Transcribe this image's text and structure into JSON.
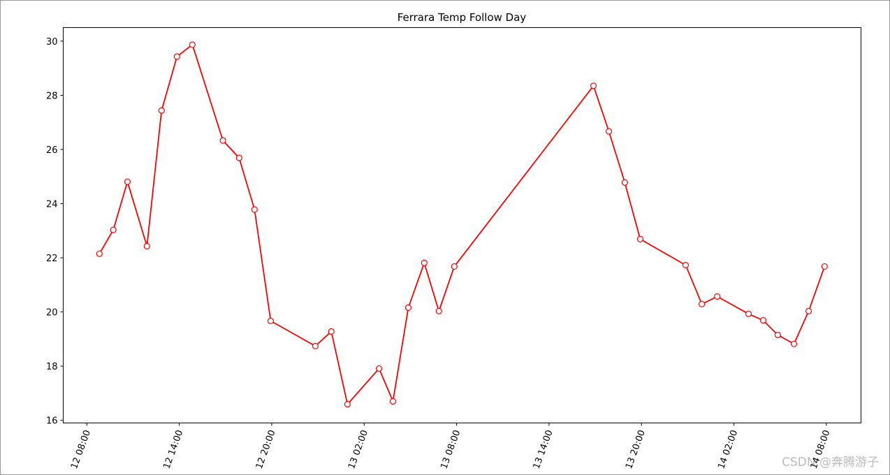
{
  "chart_data": {
    "type": "line",
    "title": "Ferrara Temp Follow Day",
    "x": [
      "12 08:49",
      "12 09:43",
      "12 10:38",
      "12 11:54",
      "12 12:51",
      "12 13:51",
      "12 14:51",
      "12 16:50",
      "12 17:53",
      "12 18:53",
      "12 19:56",
      "12 22:50",
      "12 23:52",
      "13 00:55",
      "13 02:58",
      "13 03:52",
      "13 04:52",
      "13 05:54",
      "13 06:51",
      "13 07:51",
      "13 16:53",
      "13 17:53",
      "13 18:55",
      "13 19:55",
      "13 22:52",
      "13 23:55",
      "14 00:55",
      "14 02:57",
      "14 03:54",
      "14 04:51",
      "14 05:54",
      "14 06:51",
      "14 07:53"
    ],
    "series": [
      {
        "color": "#ff0000",
        "values": [
          22.15,
          23.03,
          24.81,
          22.43,
          27.44,
          29.43,
          29.87,
          26.33,
          25.69,
          23.78,
          19.67,
          18.74,
          19.28,
          16.59,
          17.91,
          16.7,
          20.16,
          21.81,
          20.03,
          21.68,
          28.35,
          26.67,
          24.78,
          22.69,
          21.73,
          20.29,
          20.57,
          19.93,
          19.69,
          19.15,
          18.82,
          20.03,
          21.68
        ]
      }
    ],
    "xlim": [
      "12 06:28",
      "14 10:15"
    ],
    "xticks": [
      "12 08:00",
      "12 14:00",
      "12 20:00",
      "13 02:00",
      "13 08:00",
      "13 14:00",
      "13 20:00",
      "14 02:00",
      "14 08:00"
    ],
    "ylim": [
      15.9,
      30.5
    ],
    "yticks": [
      16,
      18,
      20,
      22,
      24,
      26,
      28,
      30
    ],
    "watermark": "CSDN @奔腾游子"
  }
}
